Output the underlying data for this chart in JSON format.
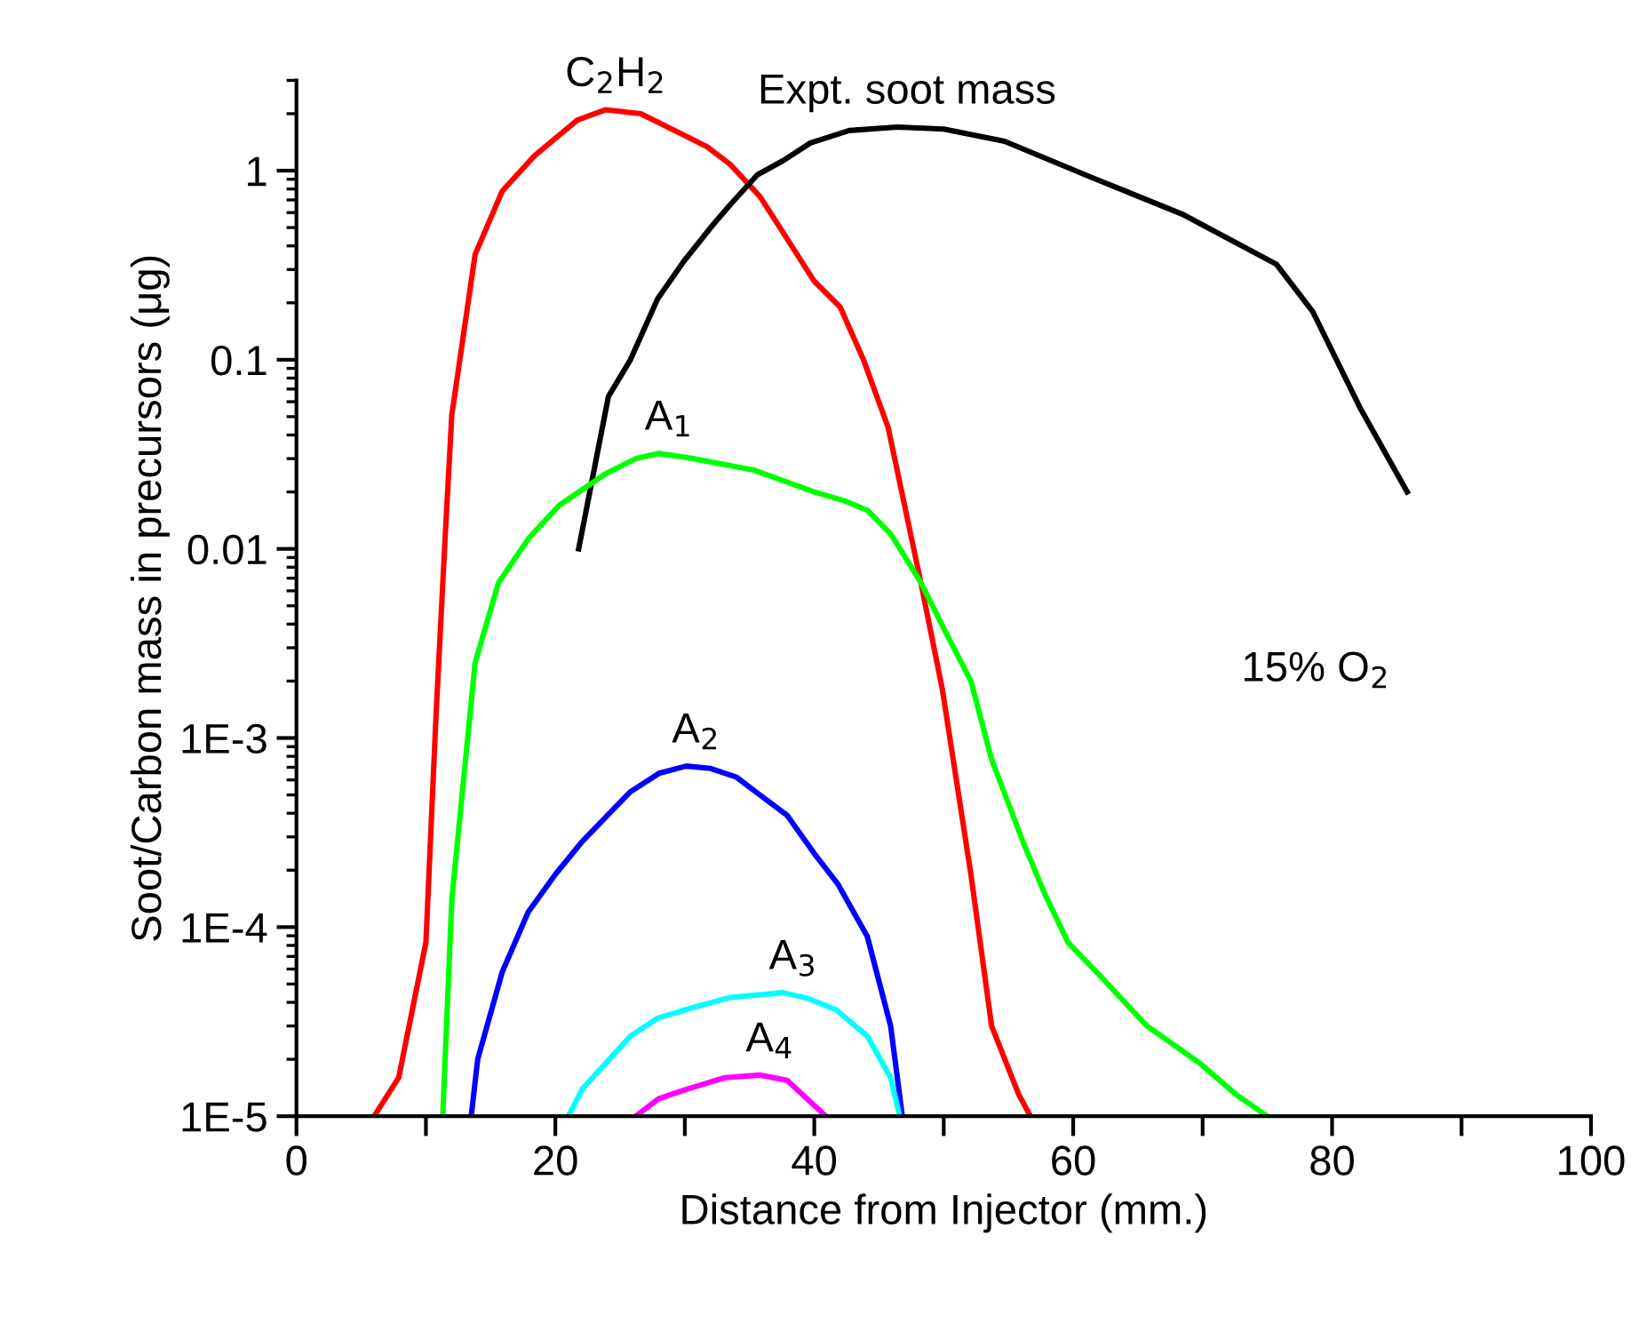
{
  "chart_data": {
    "type": "line",
    "xlabel": "Distance from Injector (mm.)",
    "ylabel": "Soot/Carbon mass in precursors (μg)",
    "log": "y",
    "xlim": [
      0,
      100
    ],
    "xticks": [
      0,
      {
        "value": 10,
        "label": null
      },
      20,
      {
        "value": 30,
        "label": null
      },
      40,
      {
        "value": 50,
        "label": null
      },
      60,
      {
        "value": 70,
        "label": null
      },
      80,
      {
        "value": 90,
        "label": null
      },
      100
    ],
    "ylim": [
      1e-05,
      3
    ],
    "yticks": [
      {
        "value": 1e-05,
        "label": "1E-5"
      },
      {
        "value": 0.0001,
        "label": "1E-4"
      },
      {
        "value": 0.001,
        "label": "1E-3"
      },
      0.01,
      0.1,
      1
    ],
    "grid": false,
    "legend": false,
    "marker": "none",
    "line_style": "solid",
    "annotations": [
      "15% O$_{2}$"
    ],
    "series": [
      {
        "name": "C$_{2}$H$_{2}$",
        "color": "#ff0000",
        "x": [
          6,
          7.9,
          10,
          10.8,
          11.5,
          12,
          13.8,
          15.9,
          18.4,
          21.7,
          23.9,
          26.6,
          31.7,
          33.5,
          35.8,
          37.6,
          40,
          42,
          43.8,
          45.7,
          48.2,
          49.9,
          52.1,
          53.7,
          55.8,
          56.7
        ],
        "values": [
          1e-05,
          1.6e-05,
          8.3e-05,
          0.0014,
          0.012,
          0.051,
          0.36,
          0.78,
          1.2,
          1.85,
          2.1,
          2.0,
          1.34,
          1.08,
          0.73,
          0.47,
          0.26,
          0.19,
          0.1,
          0.044,
          0.0068,
          0.0018,
          0.00019,
          3e-05,
          1.3e-05,
          1e-05
        ]
      },
      {
        "name": "Expt. soot mass",
        "color": "#000000",
        "x": [
          21.8,
          24.1,
          25.8,
          27.9,
          29.9,
          32.1,
          33.5,
          35.6,
          37.6,
          39.7,
          42.7,
          46.4,
          50,
          54.7,
          61.6,
          68.4,
          75.7,
          78.5,
          82.2,
          85.8
        ],
        "values": [
          0.01,
          0.064,
          0.1,
          0.21,
          0.33,
          0.51,
          0.66,
          0.95,
          1.13,
          1.4,
          1.63,
          1.7,
          1.66,
          1.43,
          0.91,
          0.59,
          0.32,
          0.18,
          0.055,
          0.02
        ]
      },
      {
        "name": "A$_{1}$",
        "color": "#00ff00",
        "x": [
          11.3,
          12,
          13.8,
          15.6,
          18,
          20.3,
          23.9,
          26.2,
          28,
          30.7,
          35.4,
          40,
          42.3,
          44.1,
          45.9,
          48.2,
          50,
          52.1,
          53.7,
          56.1,
          57.8,
          59.6,
          62,
          65.7,
          69.8,
          72.6,
          75
        ],
        "values": [
          1e-05,
          0.00014,
          0.0025,
          0.0066,
          0.0115,
          0.017,
          0.025,
          0.03,
          0.032,
          0.03,
          0.026,
          0.02,
          0.018,
          0.016,
          0.012,
          0.0067,
          0.0038,
          0.002,
          0.00077,
          0.000285,
          0.00015,
          8.3e-05,
          5.6e-05,
          3e-05,
          1.9e-05,
          1.3e-05,
          1e-05
        ]
      },
      {
        "name": "A$_{2}$",
        "color": "#0000ff",
        "x": [
          13.5,
          14,
          15.9,
          17.9,
          20,
          22.1,
          25.8,
          28,
          30.1,
          32,
          34,
          35.8,
          37.9,
          40,
          41.8,
          44.1,
          45.9,
          46.8
        ],
        "values": [
          1e-05,
          2e-05,
          5.8e-05,
          0.00012,
          0.00019,
          0.000285,
          0.00052,
          0.00065,
          0.00071,
          0.00069,
          0.00062,
          0.0005,
          0.00039,
          0.000245,
          0.00017,
          8.9e-05,
          3e-05,
          1e-05
        ]
      },
      {
        "name": "A$_{3}$",
        "color": "#00ffff",
        "x": [
          21,
          22.1,
          25.8,
          27.9,
          30.3,
          33.5,
          37.6,
          39.5,
          41.7,
          44.1,
          45.9,
          46.6
        ],
        "values": [
          1e-05,
          1.4e-05,
          2.65e-05,
          3.3e-05,
          3.7e-05,
          4.25e-05,
          4.5e-05,
          4.2e-05,
          3.65e-05,
          2.65e-05,
          1.6e-05,
          1e-05
        ]
      },
      {
        "name": "A$_{4}$",
        "color": "#ff00ff",
        "x": [
          26.2,
          28,
          30.3,
          33.1,
          35.8,
          37.9,
          40.9
        ],
        "values": [
          1e-05,
          1.24e-05,
          1.4e-05,
          1.6e-05,
          1.65e-05,
          1.55e-05,
          1e-05
        ]
      }
    ]
  }
}
